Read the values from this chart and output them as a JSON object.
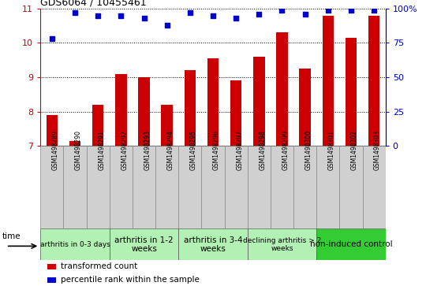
{
  "title": "GDS6064 / 10455461",
  "samples": [
    "GSM1498289",
    "GSM1498290",
    "GSM1498291",
    "GSM1498292",
    "GSM1498293",
    "GSM1498294",
    "GSM1498295",
    "GSM1498296",
    "GSM1498297",
    "GSM1498298",
    "GSM1498299",
    "GSM1498300",
    "GSM1498301",
    "GSM1498302",
    "GSM1498303"
  ],
  "bar_values": [
    7.9,
    7.15,
    8.2,
    9.1,
    9.0,
    8.2,
    9.2,
    9.55,
    8.9,
    9.6,
    10.3,
    9.25,
    10.8,
    10.15,
    10.8
  ],
  "dot_values": [
    78,
    97,
    95,
    95,
    93,
    88,
    97,
    95,
    93,
    96,
    99,
    96,
    99,
    99,
    99
  ],
  "bar_color": "#cc0000",
  "dot_color": "#0000cc",
  "ylim_left": [
    7,
    11
  ],
  "ylim_right": [
    0,
    100
  ],
  "yticks_left": [
    7,
    8,
    9,
    10,
    11
  ],
  "yticks_right": [
    0,
    25,
    50,
    75,
    100
  ],
  "ytick_labels_right": [
    "0",
    "25",
    "50",
    "75",
    "100%"
  ],
  "groups": [
    {
      "label": "arthritis in 0-3 days",
      "start": 0,
      "end": 3,
      "color": "#b3f0b3",
      "fontsize": 6.5,
      "multiline": false
    },
    {
      "label": "arthritis in 1-2\nweeks",
      "start": 3,
      "end": 6,
      "color": "#b3f0b3",
      "fontsize": 7.5,
      "multiline": true
    },
    {
      "label": "arthritis in 3-4\nweeks",
      "start": 6,
      "end": 9,
      "color": "#b3f0b3",
      "fontsize": 7.5,
      "multiline": true
    },
    {
      "label": "declining arthritis > 2\nweeks",
      "start": 9,
      "end": 12,
      "color": "#b3f0b3",
      "fontsize": 6.5,
      "multiline": true
    },
    {
      "label": "non-induced control",
      "start": 12,
      "end": 15,
      "color": "#33cc33",
      "fontsize": 7.5,
      "multiline": false
    }
  ],
  "legend_labels": [
    "transformed count",
    "percentile rank within the sample"
  ],
  "legend_colors": [
    "#cc0000",
    "#0000cc"
  ],
  "time_label": "time",
  "sample_box_color": "#d0d0d0",
  "sample_box_edge": "#888888"
}
